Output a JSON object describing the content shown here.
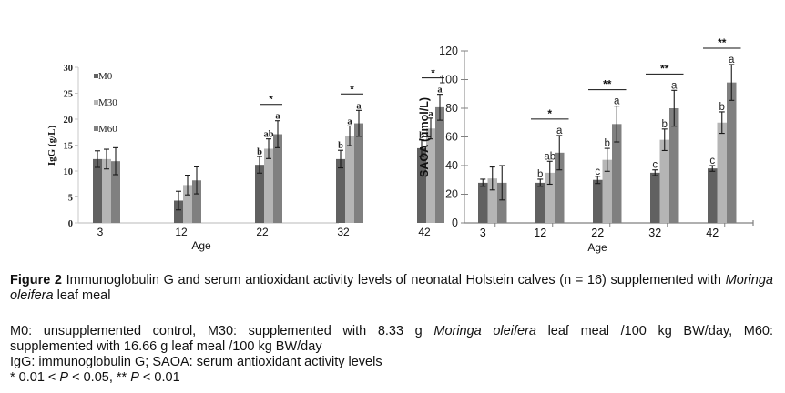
{
  "figure": {
    "label": "Figure 2",
    "caption_part1": " Immunoglobulin G and serum antioxidant activity levels of neonatal Holstein calves (n = 16) supplemented with ",
    "caption_italic": "Moringa oleifera",
    "caption_part2": " leaf meal",
    "notes": {
      "line1_a": "M0: unsupplemented control, M30: supplemented with 8.33 g ",
      "line1_italic": "Moringa oleifera",
      "line1_b": " leaf meal /100 kg BW/day, M60:",
      "line2": "supplemented with 16.66 g leaf meal /100 kg BW/day",
      "line3": "IgG: immunoglobulin G; SAOA: serum antioxidant activity levels",
      "line4_a": "* 0.01 < ",
      "line4_p1": "P",
      "line4_b": " < 0.05, ** ",
      "line4_p2": "P",
      "line4_c": " < 0.01"
    }
  },
  "colors": {
    "M0": "#616161",
    "M30": "#b5b5b5",
    "M60": "#808080",
    "axis": "#a9a9a9",
    "error": "#1a1a1a"
  },
  "chart_data": [
    {
      "type": "bar",
      "title": "",
      "xlabel": "Age",
      "ylabel": "IgG (g/L)",
      "ylim": [
        0,
        30
      ],
      "yticks": [
        0,
        5,
        10,
        15,
        20,
        25,
        30
      ],
      "categories": [
        "3",
        "12",
        "22",
        "32",
        "42"
      ],
      "legend": {
        "placement": "top-left",
        "entries": [
          "M0",
          "M30",
          "M60"
        ]
      },
      "series": [
        {
          "name": "M0",
          "values": [
            12.3,
            4.3,
            11.2,
            12.3,
            14.4
          ],
          "errors": [
            1.6,
            1.8,
            1.6,
            1.7,
            1.6
          ],
          "letters": [
            "",
            "",
            "b",
            "b",
            "b"
          ]
        },
        {
          "name": "M30",
          "values": [
            12.3,
            7.3,
            14.3,
            16.8,
            18.2
          ],
          "errors": [
            1.9,
            1.9,
            1.9,
            1.9,
            2.0
          ],
          "letters": [
            "",
            "",
            "ab",
            "a",
            "a"
          ]
        },
        {
          "name": "M60",
          "values": [
            11.9,
            8.2,
            17.1,
            19.2,
            22.3
          ],
          "errors": [
            2.6,
            2.6,
            2.6,
            2.5,
            2.5
          ],
          "letters": [
            "",
            "",
            "a",
            "a",
            "a"
          ]
        }
      ],
      "significance": [
        "",
        "",
        "*",
        "*",
        "*"
      ]
    },
    {
      "type": "bar",
      "title": "",
      "xlabel": "Age",
      "ylabel": "SAOA (µmol/L)",
      "ylim": [
        0,
        120
      ],
      "yticks": [
        0,
        20,
        40,
        60,
        80,
        100,
        120
      ],
      "categories": [
        "3",
        "12",
        "22",
        "32",
        "42"
      ],
      "series": [
        {
          "name": "M0",
          "values": [
            28,
            28,
            30,
            35,
            38
          ],
          "errors": [
            2.5,
            2.5,
            2.5,
            2.0,
            2.0
          ],
          "letters": [
            "",
            "b",
            "c",
            "c",
            "c"
          ]
        },
        {
          "name": "M30",
          "values": [
            31,
            35,
            44,
            58,
            70
          ],
          "errors": [
            8,
            8,
            8,
            7.5,
            7.5
          ],
          "letters": [
            "",
            "ab",
            "b",
            "b",
            "b"
          ]
        },
        {
          "name": "M60",
          "values": [
            28,
            49,
            69,
            80,
            98
          ],
          "errors": [
            12,
            12,
            12.5,
            12.5,
            12.5
          ],
          "letters": [
            "",
            "a",
            "a",
            "a",
            "a"
          ]
        }
      ],
      "significance": [
        "",
        "*",
        "**",
        "**",
        "**"
      ]
    }
  ]
}
